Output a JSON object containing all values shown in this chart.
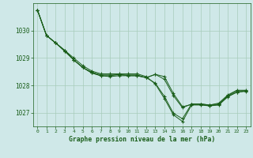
{
  "background_color": "#cfe8e8",
  "grid_color": "#a8ccbb",
  "line_color": "#1a5e1a",
  "marker_color": "#1a5e1a",
  "title": "Graphe pression niveau de la mer (hPa)",
  "title_color": "#1a5e1a",
  "tick_color": "#1a5e1a",
  "xlim": [
    -0.5,
    23.5
  ],
  "ylim": [
    1026.5,
    1031.0
  ],
  "yticks": [
    1027,
    1028,
    1029,
    1030
  ],
  "xticks": [
    0,
    1,
    2,
    3,
    4,
    5,
    6,
    7,
    8,
    9,
    10,
    11,
    12,
    13,
    14,
    15,
    16,
    17,
    18,
    19,
    20,
    21,
    22,
    23
  ],
  "series": [
    [
      1030.75,
      1029.82,
      1029.55,
      1029.28,
      1028.93,
      1028.65,
      1028.48,
      1028.38,
      1028.38,
      1028.38,
      1028.38,
      1028.38,
      1028.28,
      1028.08,
      1027.6,
      1026.98,
      1026.78,
      1027.32,
      1027.32,
      1027.28,
      1027.35,
      1027.65,
      1027.82,
      1027.82
    ],
    [
      1030.75,
      1029.82,
      1029.55,
      1029.28,
      1029.0,
      1028.72,
      1028.52,
      1028.42,
      1028.42,
      1028.42,
      1028.42,
      1028.42,
      1028.32,
      1028.05,
      1027.52,
      1026.92,
      1026.68,
      1027.28,
      1027.28,
      1027.25,
      1027.28,
      1027.58,
      1027.75,
      1027.78
    ],
    [
      1030.75,
      1029.82,
      1029.55,
      1029.25,
      1028.93,
      1028.65,
      1028.45,
      1028.35,
      1028.35,
      1028.4,
      1028.35,
      1028.35,
      1028.28,
      1028.4,
      1028.32,
      1027.7,
      1027.22,
      1027.3,
      1027.3,
      1027.25,
      1027.3,
      1027.6,
      1027.75,
      1027.8
    ],
    [
      1030.75,
      1029.82,
      1029.55,
      1029.25,
      1028.93,
      1028.65,
      1028.45,
      1028.35,
      1028.32,
      1028.35,
      1028.35,
      1028.35,
      1028.28,
      1028.4,
      1028.22,
      1027.62,
      1027.18,
      1027.32,
      1027.32,
      1027.28,
      1027.32,
      1027.62,
      1027.8,
      1027.8
    ]
  ]
}
